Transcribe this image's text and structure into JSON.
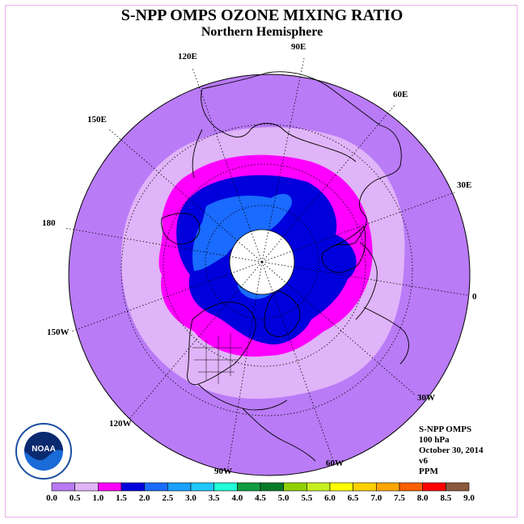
{
  "title": "S-NPP OMPS OZONE MIXING RATIO",
  "subtitle": "Northern Hemisphere",
  "longitude_labels": [
    "90E",
    "60E",
    "30E",
    "0",
    "30W",
    "60W",
    "90W",
    "120W",
    "150W",
    "180",
    "150E",
    "120E"
  ],
  "info": {
    "instrument": "S-NPP OMPS",
    "level": "100 hPa",
    "date": "October 30, 2014",
    "version": "v6",
    "units": "PPM"
  },
  "logo": {
    "text": "NOAA",
    "icon": "noaa-logo"
  },
  "colors": {
    "ocean_bg": "#b87bf5",
    "land_outline": "#000000",
    "frame": "#e9b3e9",
    "no_data": "#ffffff"
  },
  "colorbar": {
    "ticks": [
      "0.0",
      "0.5",
      "1.0",
      "1.5",
      "2.0",
      "2.5",
      "3.0",
      "3.5",
      "4.0",
      "4.5",
      "5.0",
      "5.5",
      "6.0",
      "6.5",
      "7.0",
      "7.5",
      "8.0",
      "8.5",
      "9.0"
    ],
    "colors": [
      "#b97bf6",
      "#e0b4f8",
      "#ff00ff",
      "#0000dd",
      "#1a6bff",
      "#1aa0ff",
      "#20c8ff",
      "#20ffd8",
      "#109c40",
      "#0a7a2a",
      "#90d000",
      "#c8f020",
      "#ffff00",
      "#ffd000",
      "#ffa500",
      "#ff6000",
      "#ff0000",
      "#8b5a3c"
    ]
  },
  "field_levels": [
    {
      "range": "0.0-0.5",
      "color": "#b97bf6"
    },
    {
      "range": "0.5-1.0",
      "color": "#e0b4f8"
    },
    {
      "range": "1.0-1.5",
      "color": "#ff00ff"
    },
    {
      "range": "1.5-2.0",
      "color": "#0000dd"
    },
    {
      "range": "2.0-2.5",
      "color": "#1a6bff"
    }
  ]
}
